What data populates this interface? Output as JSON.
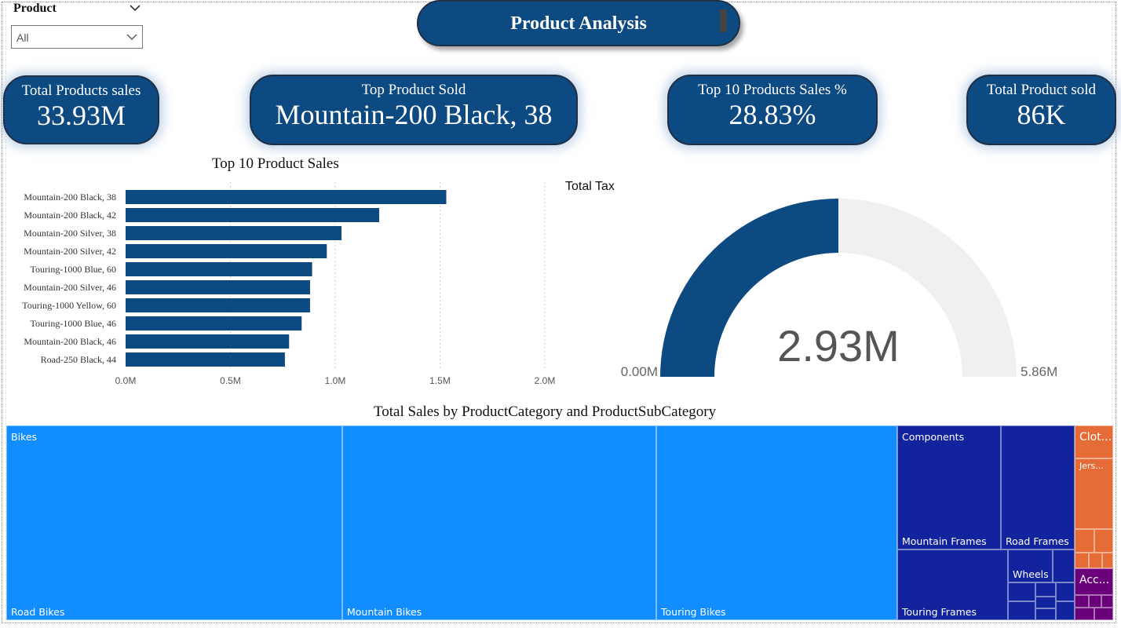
{
  "slicer": {
    "title": "Product",
    "value": "All"
  },
  "page_title": "Product Analysis",
  "kpis": {
    "total_sales": {
      "label": "Total Products sales",
      "value": "33.93M"
    },
    "top_product": {
      "label": "Top Product Sold",
      "value": "Mountain-200 Black, 38"
    },
    "top10_pct": {
      "label": "Top 10 Products Sales %",
      "value": "28.83%"
    },
    "total_sold": {
      "label": "Total Product sold",
      "value": "86K"
    }
  },
  "colors": {
    "navy": "#0d4a82",
    "bikes": "#118dff",
    "components": "#12239e",
    "clothing": "#e66c37",
    "accessories": "#6b007b",
    "gauge_track": "#f0f0f0"
  },
  "chart_data": [
    {
      "type": "bar",
      "orientation": "horizontal",
      "title": "Top 10 Product Sales",
      "categories": [
        "Mountain-200 Black, 38",
        "Mountain-200 Black, 42",
        "Mountain-200 Silver, 38",
        "Mountain-200 Silver, 42",
        "Touring-1000 Blue, 60",
        "Mountain-200 Silver, 46",
        "Touring-1000 Yellow, 60",
        "Touring-1000 Blue, 46",
        "Mountain-200 Black, 46",
        "Road-250 Black, 44"
      ],
      "values": [
        1.53,
        1.21,
        1.03,
        0.96,
        0.89,
        0.88,
        0.88,
        0.84,
        0.78,
        0.76
      ],
      "xlim": [
        0,
        2.0
      ],
      "x_ticks": [
        "0.0M",
        "0.5M",
        "1.0M",
        "1.5M",
        "2.0M"
      ],
      "grid": true
    },
    {
      "type": "gauge",
      "title": "Total Tax",
      "value": 2.93,
      "value_label": "2.93M",
      "min_label": "0.00M",
      "max_label": "5.86M",
      "min": 0,
      "max": 5.86
    },
    {
      "type": "treemap",
      "title": "Total Sales by ProductCategory and ProductSubCategory",
      "categories": [
        {
          "name": "Bikes",
          "subcategories": [
            "Road Bikes",
            "Mountain Bikes",
            "Touring Bikes"
          ]
        },
        {
          "name": "Components",
          "subcategories": [
            "Mountain Frames",
            "Road Frames",
            "Touring Frames",
            "Wheels"
          ]
        },
        {
          "name": "Clot...",
          "subcategories": [
            "Jers..."
          ]
        },
        {
          "name": "Acc...",
          "subcategories": []
        }
      ]
    }
  ]
}
